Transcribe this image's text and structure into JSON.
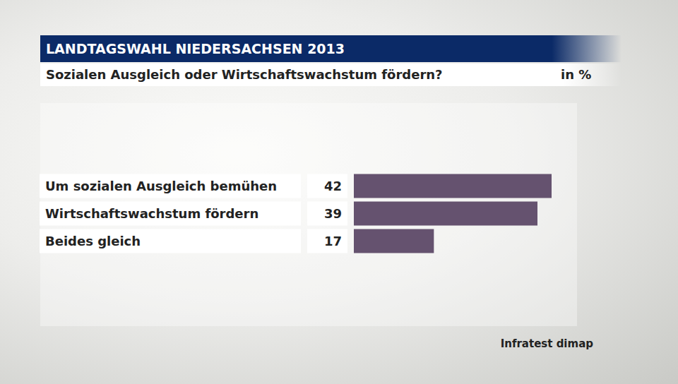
{
  "chart_data": {
    "type": "bar",
    "title": "LANDTAGSWAHL NIEDERSACHSEN 2013",
    "subtitle": "Sozialen Ausgleich oder Wirtschaftswachstum fördern?",
    "unit": "in %",
    "source": "Infratest dimap",
    "orientation": "horizontal",
    "categories": [
      "Um sozialen Ausgleich bemühen",
      "Wirtschaftswachstum fördern",
      "Beides gleich"
    ],
    "values": [
      42,
      39,
      17
    ],
    "color": "#65526f",
    "xlim": [
      0,
      42
    ],
    "data_labels": true,
    "tick_labels": false,
    "grid": false
  }
}
